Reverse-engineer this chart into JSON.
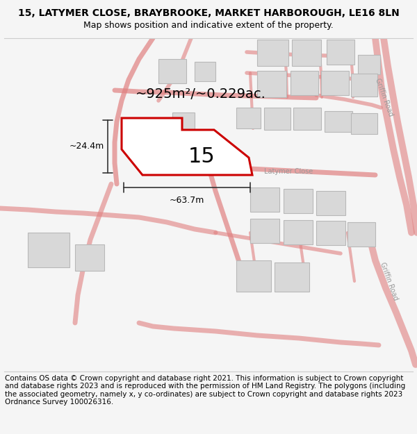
{
  "title": "15, LATYMER CLOSE, BRAYBROOKE, MARKET HARBOROUGH, LE16 8LN",
  "subtitle": "Map shows position and indicative extent of the property.",
  "footer": "Contains OS data © Crown copyright and database right 2021. This information is subject to Crown copyright and database rights 2023 and is reproduced with the permission of HM Land Registry. The polygons (including the associated geometry, namely x, y co-ordinates) are subject to Crown copyright and database rights 2023 Ordnance Survey 100026316.",
  "area_label": "~925m²/~0.229ac.",
  "width_label": "~63.7m",
  "height_label": "~24.4m",
  "plot_number": "15",
  "road_label": "Latymer Close",
  "road_label2": "Griffin Road",
  "road_label3": "Griffin Road",
  "bg_color": "#f5f5f5",
  "map_bg": "#ffffff",
  "plot_color": "#cc0000",
  "road_color": "#f0a0a0",
  "road_line_color": "#e08080",
  "building_color": "#d8d8d8",
  "building_edge": "#b8b8b8",
  "dim_color": "#333333",
  "label_color": "#999999",
  "title_fontsize": 10,
  "subtitle_fontsize": 9,
  "footer_fontsize": 7.5,
  "map_title_fontsize": 14,
  "plot_num_fontsize": 22,
  "dim_fontsize": 9,
  "road_label_fontsize": 7
}
